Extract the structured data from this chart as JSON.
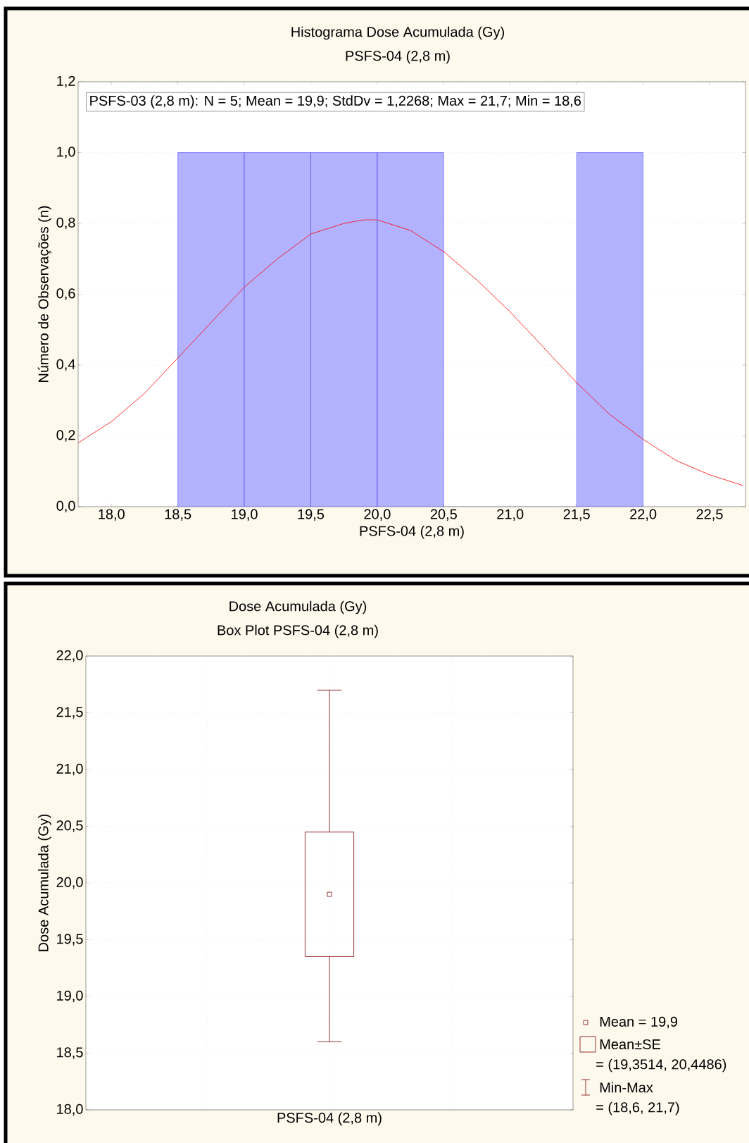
{
  "chart_data": [
    {
      "type": "histogram",
      "title": "Histograma Dose Acumulada (Gy)",
      "subtitle": "PSFS-04 (2,8 m)",
      "xlabel": "PSFS-04 (2,8 m)",
      "ylabel": "Número de Observações (n)",
      "bins": [
        18.5,
        19.0,
        19.5,
        20.0,
        20.5,
        21.0,
        21.5,
        22.0
      ],
      "values": [
        1,
        1,
        1,
        1,
        0,
        0,
        1
      ],
      "color": "#0000ff",
      "series": [
        {
          "type": "line",
          "color": "#ff0000",
          "x": [
            17.75,
            18.0,
            18.25,
            18.5,
            18.75,
            19.0,
            19.25,
            19.5,
            19.75,
            19.9,
            20.0,
            20.25,
            20.5,
            20.75,
            21.0,
            21.25,
            21.5,
            21.75,
            22.0,
            22.25,
            22.5,
            22.75
          ],
          "values": [
            0.18,
            0.24,
            0.32,
            0.42,
            0.52,
            0.62,
            0.7,
            0.77,
            0.8,
            0.81,
            0.81,
            0.78,
            0.72,
            0.64,
            0.55,
            0.45,
            0.35,
            0.26,
            0.19,
            0.13,
            0.09,
            0.06
          ]
        }
      ],
      "xlim": [
        17.75,
        22.77
      ],
      "ylim": [
        0,
        1.2
      ],
      "xticks": [
        {
          "value": 18.0,
          "label": "18,0"
        },
        {
          "value": 18.5,
          "label": "18,5"
        },
        {
          "value": 19.0,
          "label": "19,0"
        },
        {
          "value": 19.5,
          "label": "19,5"
        },
        {
          "value": 20.0,
          "label": "20,0"
        },
        {
          "value": 20.5,
          "label": "20,5"
        },
        {
          "value": 21.0,
          "label": "21,0"
        },
        {
          "value": 21.5,
          "label": "21,5"
        },
        {
          "value": 22.0,
          "label": "22,0"
        },
        {
          "value": 22.5,
          "label": "22,5"
        }
      ],
      "yticks": [
        {
          "value": 0,
          "label": "0,0"
        },
        {
          "value": 0.2,
          "label": "0,2"
        },
        {
          "value": 0.4,
          "label": "0,4"
        },
        {
          "value": 0.6,
          "label": "0,6"
        },
        {
          "value": 0.8,
          "label": "0,8"
        },
        {
          "value": 1.0,
          "label": "1,0"
        },
        {
          "value": 1.2,
          "label": "1,2"
        }
      ],
      "grid": "y",
      "annotations": [
        "PSFS-03 (2,8 m):   N = 5; Mean = 19,9; StdDv = 1,2268; Max = 21,7; Min = 18,6"
      ]
    },
    {
      "type": "box",
      "title": "Dose Acumulada (Gy)",
      "subtitle": "Box Plot PSFS-04 (2,8 m)",
      "ylabel": "Dose Acumulada (Gy)",
      "categories": [
        "PSFS-04 (2,8 m)"
      ],
      "color": "#800000",
      "boxes": [
        {
          "low": 18.6,
          "q1": 19.3514,
          "q3": 20.4486,
          "high": 21.7,
          "mean": 19.9
        }
      ],
      "ylim": [
        18,
        22
      ],
      "yticks": [
        {
          "value": 18.0,
          "label": "18,0"
        },
        {
          "value": 18.5,
          "label": "18,5"
        },
        {
          "value": 19.0,
          "label": "19,0"
        },
        {
          "value": 19.5,
          "label": "19,5"
        },
        {
          "value": 20.0,
          "label": "20,0"
        },
        {
          "value": 20.5,
          "label": "20,5"
        },
        {
          "value": 21.0,
          "label": "21,0"
        },
        {
          "value": 21.5,
          "label": "21,5"
        },
        {
          "value": 22.0,
          "label": "22,0"
        }
      ],
      "grid": true,
      "annotations": [
        "Mean = 19,9",
        "Mean±SE",
        "= (19,3514, 20,4486)",
        "Min-Max",
        "= (18,6, 21,7)"
      ]
    }
  ]
}
